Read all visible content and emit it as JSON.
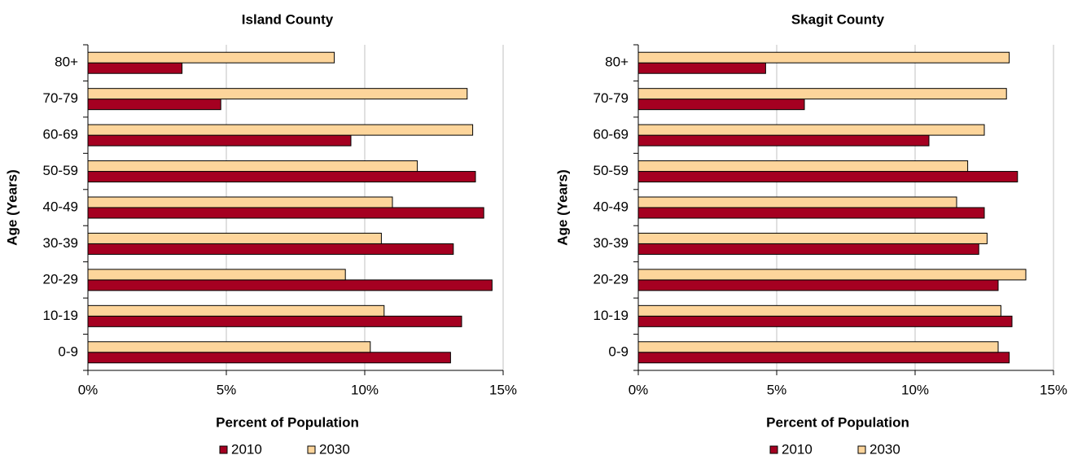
{
  "chart_data": [
    {
      "type": "barh",
      "title": "Island County",
      "xlabel": "Percent of Population",
      "ylabel": "Age (Years)",
      "categories": [
        "0-9",
        "10-19",
        "20-29",
        "30-39",
        "40-49",
        "50-59",
        "60-69",
        "70-79",
        "80+"
      ],
      "series": [
        {
          "name": "2010",
          "color": "#a50021",
          "values": [
            13.1,
            13.5,
            14.6,
            13.2,
            14.3,
            14.0,
            9.5,
            4.8,
            3.4
          ]
        },
        {
          "name": "2030",
          "color": "#fdd59b",
          "values": [
            10.2,
            10.7,
            9.3,
            10.6,
            11.0,
            11.9,
            13.9,
            13.7,
            8.9
          ]
        }
      ],
      "xlim": [
        0,
        15
      ],
      "xticks": [
        {
          "value": 0,
          "label": "0%"
        },
        {
          "value": 5,
          "label": "5%"
        },
        {
          "value": 10,
          "label": "10%"
        },
        {
          "value": 15,
          "label": "15%"
        }
      ],
      "grid": true,
      "legend": "bottom"
    },
    {
      "type": "barh",
      "title": "Skagit County",
      "xlabel": "Percent of Population",
      "ylabel": "Age (Years)",
      "categories": [
        "0-9",
        "10-19",
        "20-29",
        "30-39",
        "40-49",
        "50-59",
        "60-69",
        "70-79",
        "80+"
      ],
      "series": [
        {
          "name": "2010",
          "color": "#a50021",
          "values": [
            13.4,
            13.5,
            13.0,
            12.3,
            12.5,
            13.7,
            10.5,
            6.0,
            4.6
          ]
        },
        {
          "name": "2030",
          "color": "#fdd59b",
          "values": [
            13.0,
            13.1,
            14.0,
            12.6,
            11.5,
            11.9,
            12.5,
            13.3,
            13.4
          ]
        }
      ],
      "xlim": [
        0,
        15
      ],
      "xticks": [
        {
          "value": 0,
          "label": "0%"
        },
        {
          "value": 5,
          "label": "5%"
        },
        {
          "value": 10,
          "label": "10%"
        },
        {
          "value": 15,
          "label": "15%"
        }
      ],
      "grid": true,
      "legend": "bottom"
    }
  ]
}
